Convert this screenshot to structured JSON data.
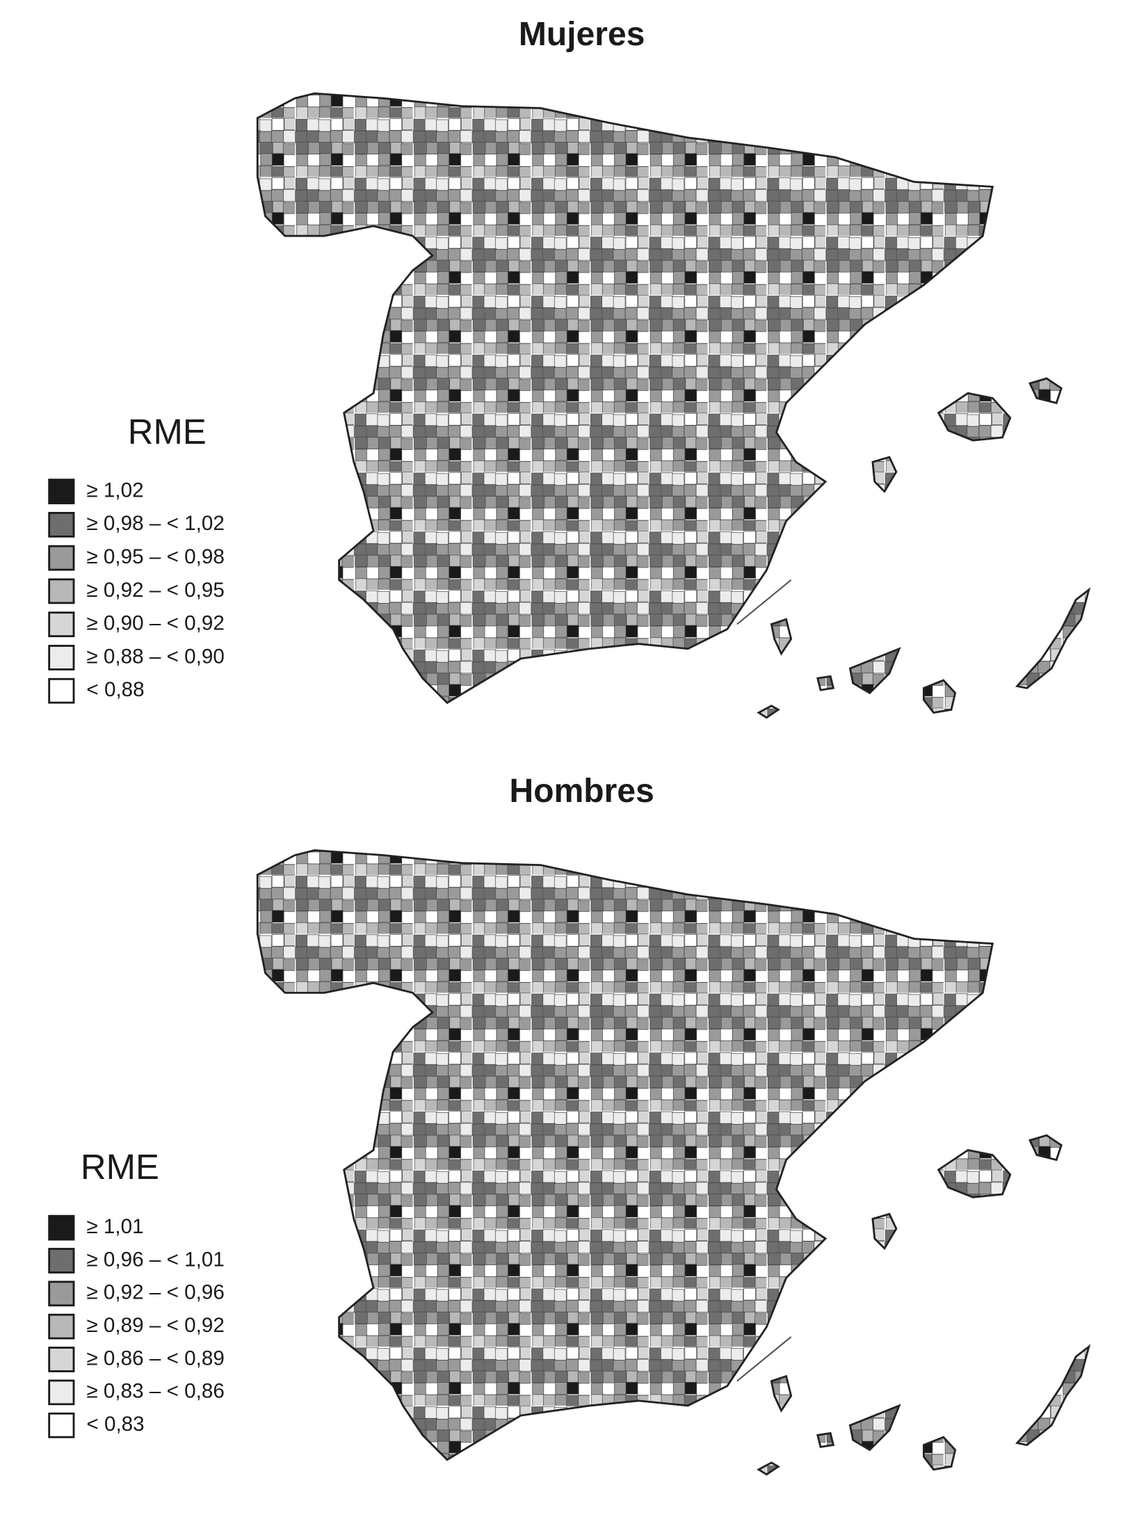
{
  "maps": [
    {
      "title": "Mujeres",
      "legend": {
        "title": "RME",
        "items": [
          {
            "label": "≥ 1,02",
            "color": "#1a1a1a"
          },
          {
            "label": "≥ 0,98 – < 1,02",
            "color": "#6e6e6e"
          },
          {
            "label": "≥ 0,95 – < 0,98",
            "color": "#9a9a9a"
          },
          {
            "label": "≥ 0,92 – < 0,95",
            "color": "#b8b8b8"
          },
          {
            "label": "≥ 0,90 – < 0,92",
            "color": "#d6d6d6"
          },
          {
            "label": "≥ 0,88 – < 0,90",
            "color": "#ececec"
          },
          {
            "label": "< 0,88",
            "color": "#ffffff"
          }
        ]
      }
    },
    {
      "title": "Hombres",
      "legend": {
        "title": "RME",
        "items": [
          {
            "label": "≥ 1,01",
            "color": "#1a1a1a"
          },
          {
            "label": "≥ 0,96 – < 1,01",
            "color": "#6e6e6e"
          },
          {
            "label": "≥ 0,92 – < 0,96",
            "color": "#9a9a9a"
          },
          {
            "label": "≥ 0,89 – < 0,92",
            "color": "#b8b8b8"
          },
          {
            "label": "≥ 0,86 – < 0,89",
            "color": "#d6d6d6"
          },
          {
            "label": "≥ 0,83 – < 0,86",
            "color": "#ececec"
          },
          {
            "label": "< 0,83",
            "color": "#ffffff"
          }
        ]
      }
    }
  ]
}
